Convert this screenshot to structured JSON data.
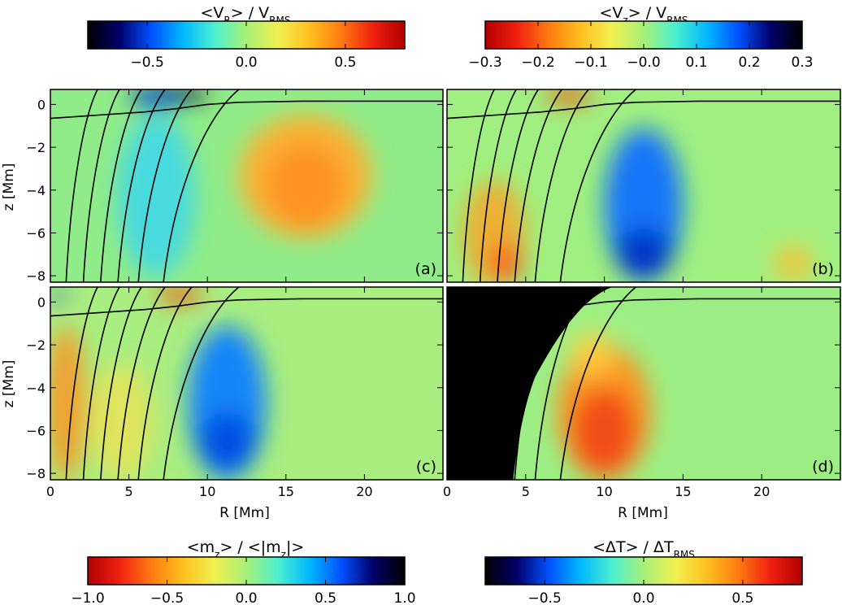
{
  "chart_data": {
    "type": "heatmap",
    "colorbars": [
      {
        "id": "vr",
        "title": "<V_R> / V_RMS",
        "title_main": "<V",
        "title_sub": "R",
        "title_rest": "> / V",
        "title_sub2": "RMS",
        "range": [
          -0.8,
          0.8
        ],
        "ticks": [
          -0.5,
          0.0,
          0.5
        ],
        "tick_labels": [
          "−0.5",
          "0.0",
          "0.5"
        ],
        "colormap": "jet-dark-low"
      },
      {
        "id": "vz",
        "title": "<V_z> / V_RMS",
        "title_main": "<V",
        "title_sub": "z",
        "title_rest": "> / V",
        "title_sub2": "RMS",
        "range": [
          -0.3,
          0.3
        ],
        "ticks": [
          -0.3,
          -0.2,
          -0.1,
          0.0,
          0.1,
          0.2,
          0.3
        ],
        "tick_labels": [
          "−0.3",
          "−0.2",
          "−0.1",
          "−0.0",
          "0.1",
          "0.2",
          "0.3"
        ],
        "colormap": "jet-reversed-dark-high"
      },
      {
        "id": "mz",
        "title": "<m_z> / <|m_z|>",
        "title_main": "<m",
        "title_sub": "z",
        "title_rest": "> / <|m",
        "title_sub2": "z",
        "title_end": "|>",
        "range": [
          -1.0,
          1.0
        ],
        "ticks": [
          -1.0,
          -0.5,
          0.0,
          0.5,
          1.0
        ],
        "tick_labels": [
          "−1.0",
          "−0.5",
          "0.0",
          "0.5",
          "1.0"
        ],
        "colormap": "jet-reversed-dark-high"
      },
      {
        "id": "dt",
        "title": "<ΔT> / ΔT_RMS",
        "title_main": "<ΔT> / ΔT",
        "title_sub": "RMS",
        "range": [
          -0.8,
          0.8
        ],
        "ticks": [
          -0.5,
          0.0,
          0.5
        ],
        "tick_labels": [
          "−0.5",
          "0.0",
          "0.5"
        ],
        "colormap": "jet-dark-low"
      }
    ],
    "panels": [
      {
        "label": "(a)",
        "quantity": "vr"
      },
      {
        "label": "(b)",
        "quantity": "vz"
      },
      {
        "label": "(c)",
        "quantity": "mz"
      },
      {
        "label": "(d)",
        "quantity": "dt"
      }
    ],
    "xlabel": "R [Mm]",
    "ylabel": "z [Mm]",
    "xlim": [
      0,
      25
    ],
    "ylim": [
      -8.3,
      0.7
    ],
    "xticks": [
      0,
      5,
      10,
      15,
      20
    ],
    "yticks": [
      0,
      -2,
      -4,
      -6,
      -8
    ],
    "ytick_labels": [
      "0",
      "−2",
      "−4",
      "−6",
      "−8"
    ],
    "field_lines_bottom_R": [
      1.0,
      2.1,
      3.2,
      4.3,
      5.6,
      7.2
    ],
    "field_lines_top_R": [
      3.0,
      4.4,
      5.8,
      7.3,
      9.0,
      12.0
    ],
    "tau_contour": [
      [
        0,
        -0.65
      ],
      [
        2,
        -0.55
      ],
      [
        4,
        -0.45
      ],
      [
        6,
        -0.35
      ],
      [
        8,
        -0.2
      ],
      [
        10,
        0.0
      ],
      [
        12,
        0.1
      ],
      [
        16,
        0.15
      ],
      [
        25,
        0.15
      ]
    ]
  }
}
